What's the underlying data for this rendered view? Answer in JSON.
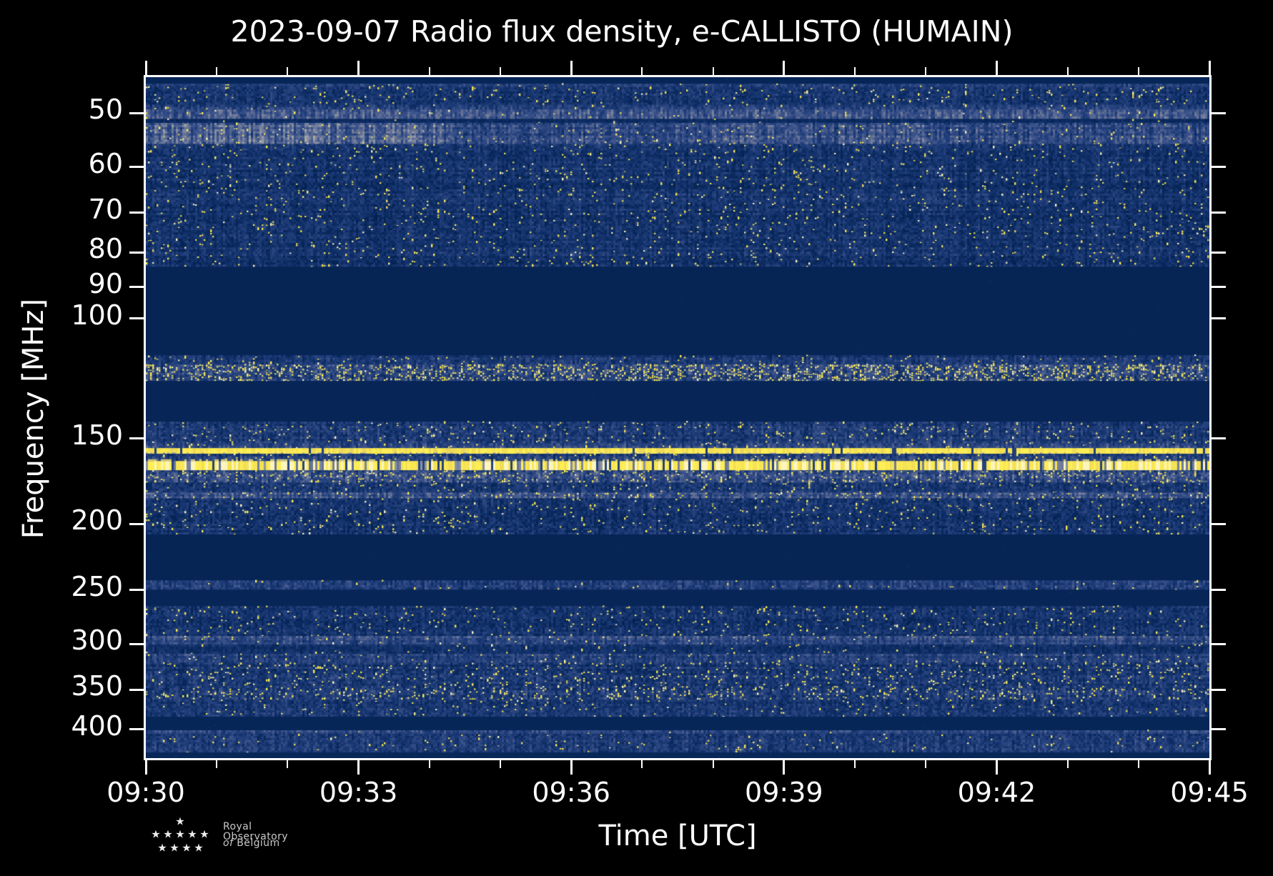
{
  "page": {
    "background": "#000000"
  },
  "chart_data": {
    "type": "heatmap",
    "title": "2023-09-07 Radio flux density, e-CALLISTO (HUMAIN)",
    "date": "2023-09-07",
    "instrument": "e-CALLISTO",
    "station": "HUMAIN",
    "xlabel": "Time [UTC]",
    "ylabel": "Frequency [MHz]",
    "x_start": "09:30",
    "x_end": "09:45",
    "x_span_minutes": 15,
    "x_major_ticks": [
      "09:30",
      "09:33",
      "09:36",
      "09:39",
      "09:42",
      "09:45"
    ],
    "x_major_interval_minutes": 3,
    "x_minor_interval_minutes": 1,
    "y_scale": "log",
    "y_range_mhz": [
      44.3,
      441
    ],
    "y_major_ticks_mhz": [
      50,
      60,
      70,
      80,
      90,
      100,
      150,
      200,
      250,
      300,
      350,
      400
    ],
    "colormap_stops": [
      [
        0.0,
        "#02204c"
      ],
      [
        0.12,
        "#0b2a60"
      ],
      [
        0.28,
        "#1e3c78"
      ],
      [
        0.45,
        "#3e558d"
      ],
      [
        0.6,
        "#707b97"
      ],
      [
        0.72,
        "#949cab"
      ],
      [
        0.82,
        "#c2b98b"
      ],
      [
        0.92,
        "#f0dc55"
      ],
      [
        1.0,
        "#ffef55"
      ]
    ],
    "bands": [
      {
        "f0": 44.3,
        "f1": 45.3,
        "kind": "solid",
        "base": 0.07,
        "note": "dark top edge"
      },
      {
        "f0": 45.3,
        "f1": 45.8,
        "kind": "noise",
        "base": 0.33,
        "var": 0.2,
        "yellow": 0.02,
        "note": "thin speckled line"
      },
      {
        "f0": 45.8,
        "f1": 48.6,
        "kind": "noise",
        "base": 0.21,
        "var": 0.24,
        "yellow": 0.05
      },
      {
        "f0": 48.6,
        "f1": 49.4,
        "kind": "noise",
        "base": 0.3,
        "var": 0.24,
        "yellow": 0.03
      },
      {
        "f0": 49.4,
        "f1": 51.0,
        "kind": "noise",
        "base": 0.45,
        "var": 0.22,
        "yellow": 0.02,
        "note": "bright band near 50 MHz"
      },
      {
        "f0": 51.0,
        "f1": 51.7,
        "kind": "noise",
        "base": 0.13,
        "var": 0.12,
        "yellow": 0.01
      },
      {
        "f0": 51.7,
        "f1": 55.5,
        "kind": "noise",
        "base": 0.36,
        "var": 0.26,
        "yellow": 0.03,
        "washLeft": true,
        "note": "gray wash, brightest at left"
      },
      {
        "f0": 55.5,
        "f1": 84.0,
        "kind": "noise",
        "base": 0.2,
        "var": 0.24,
        "yellow": 0.05,
        "rowmod": 0.5,
        "note": "broadband noise 55-84 MHz"
      },
      {
        "f0": 84.0,
        "f1": 113.2,
        "kind": "solid",
        "base": 0.055,
        "note": "quiet band 84-113 MHz"
      },
      {
        "f0": 113.2,
        "f1": 116.8,
        "kind": "noise",
        "base": 0.24,
        "var": 0.24,
        "yellow": 0.05
      },
      {
        "f0": 116.8,
        "f1": 123.5,
        "kind": "noise",
        "base": 0.34,
        "var": 0.3,
        "yellow": 0.3,
        "note": "dense yellow RFI ~118-123 MHz"
      },
      {
        "f0": 123.5,
        "f1": 141.7,
        "kind": "solid",
        "base": 0.06,
        "note": "quiet band"
      },
      {
        "f0": 141.7,
        "f1": 152.4,
        "kind": "noise",
        "base": 0.27,
        "var": 0.27,
        "yellow": 0.06
      },
      {
        "f0": 152.4,
        "f1": 154.9,
        "kind": "noise",
        "base": 0.4,
        "var": 0.24,
        "yellow": 0.05
      },
      {
        "f0": 154.9,
        "f1": 157.9,
        "kind": "rfiline",
        "base": 0.95,
        "note": "continuous RFI line ~156 MHz"
      },
      {
        "f0": 157.9,
        "f1": 161.8,
        "kind": "noise",
        "base": 0.3,
        "var": 0.26,
        "yellow": 0.06
      },
      {
        "f0": 161.8,
        "f1": 167.0,
        "kind": "rfidash",
        "base": 0.9,
        "note": "strong dashed RFI ~164 MHz"
      },
      {
        "f0": 167.0,
        "f1": 174.0,
        "kind": "noise",
        "base": 0.38,
        "var": 0.3,
        "yellow": 0.12
      },
      {
        "f0": 174.0,
        "f1": 180.0,
        "kind": "noise",
        "base": 0.26,
        "var": 0.26,
        "yellow": 0.05
      },
      {
        "f0": 180.0,
        "f1": 183.5,
        "kind": "noise",
        "base": 0.42,
        "var": 0.24,
        "yellow": 0.09,
        "note": "thin bright line ~182 MHz"
      },
      {
        "f0": 183.5,
        "f1": 207.3,
        "kind": "noise",
        "base": 0.21,
        "var": 0.26,
        "yellow": 0.05,
        "rowmod": 0.4
      },
      {
        "f0": 207.3,
        "f1": 242.1,
        "kind": "solid",
        "base": 0.05,
        "note": "quiet band 207-242 MHz"
      },
      {
        "f0": 242.1,
        "f1": 249.8,
        "kind": "noise",
        "base": 0.29,
        "var": 0.24,
        "yellow": 0.02,
        "note": "thin band at 250 MHz"
      },
      {
        "f0": 249.8,
        "f1": 264.0,
        "kind": "solid",
        "base": 0.06
      },
      {
        "f0": 264.0,
        "f1": 292.1,
        "kind": "noise",
        "base": 0.21,
        "var": 0.25,
        "yellow": 0.05,
        "rowmod": 0.4
      },
      {
        "f0": 292.1,
        "f1": 300.5,
        "kind": "noise",
        "base": 0.38,
        "var": 0.22,
        "yellow": 0.03,
        "note": "bright row at 300 MHz"
      },
      {
        "f0": 300.5,
        "f1": 310.2,
        "kind": "noise",
        "base": 0.17,
        "var": 0.2,
        "yellow": 0.03
      },
      {
        "f0": 310.2,
        "f1": 319.4,
        "kind": "noise",
        "base": 0.33,
        "var": 0.22,
        "yellow": 0.04
      },
      {
        "f0": 319.4,
        "f1": 348.0,
        "kind": "noise",
        "base": 0.23,
        "var": 0.27,
        "yellow": 0.09,
        "rowmod": 0.4
      },
      {
        "f0": 348.0,
        "f1": 362.0,
        "kind": "noise",
        "base": 0.27,
        "var": 0.28,
        "yellow": 0.17,
        "note": "bright yellow blobs ~355 MHz"
      },
      {
        "f0": 362.0,
        "f1": 383.5,
        "kind": "noise",
        "base": 0.24,
        "var": 0.25,
        "yellow": 0.04
      },
      {
        "f0": 383.5,
        "f1": 401.5,
        "kind": "solid",
        "base": 0.07
      },
      {
        "f0": 401.5,
        "f1": 406.4,
        "kind": "noise",
        "base": 0.34,
        "var": 0.18,
        "yellow": 0.01,
        "note": "thin gray line ~404 MHz"
      },
      {
        "f0": 406.4,
        "f1": 432.6,
        "kind": "noise",
        "base": 0.28,
        "var": 0.24,
        "yellow": 0.03
      },
      {
        "f0": 432.6,
        "f1": 441.0,
        "kind": "solid",
        "base": 0.08
      }
    ]
  },
  "logo": {
    "line1": "Royal Observatory",
    "line2_italic": "of",
    "line2_rest": "Belgium",
    "star_count": 10
  },
  "colors": {
    "background": "#000000",
    "axes": "#ffffff",
    "text": "#ffffff",
    "logo_text": "#c9c9c9",
    "star": "#ededed",
    "overheat": "#fdf5bd"
  }
}
